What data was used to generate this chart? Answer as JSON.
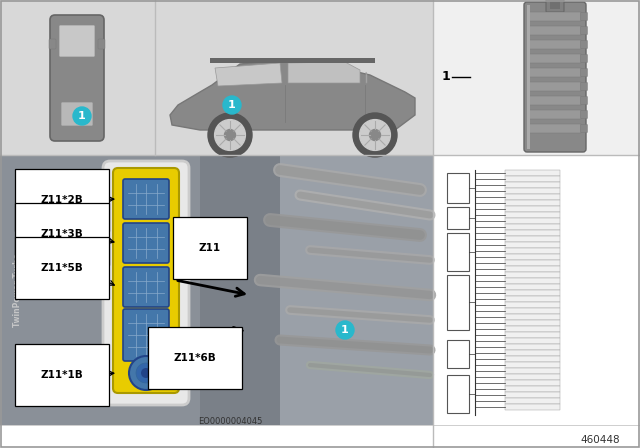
{
  "bg_color": "#ffffff",
  "panel_top_bg": "#d8d8d8",
  "panel_bottom_bg": "#8a9098",
  "panel_right_top_bg": "#f0f0f0",
  "panel_right_bottom_bg": "#ffffff",
  "teal_color": "#29b8cc",
  "yellow_color": "#d4b800",
  "yellow_fill": "#e8cc00",
  "connector_blue": "#5588bb",
  "connector_dark": "#3366aa",
  "part_gray": "#888888",
  "part_light": "#aaaaaa",
  "part_dark": "#666666",
  "car_body": "#888888",
  "car_window": "#cccccc",
  "car_body_light": "#999999",
  "wheel_dark": "#555555",
  "wheel_light": "#aaaaaa",
  "schematic_line": "#333333",
  "schematic_bg": "#ffffff",
  "label_bg": "#ffffff",
  "label_border": "#000000",
  "arrow_color": "#000000",
  "border_color": "#999999",
  "diagram_number": "460448",
  "eo_number": "EO0000004045",
  "labels": {
    "Z11": "Z11",
    "Z11_2B": "Z11*2B",
    "Z11_3B": "Z11*3B",
    "Z11_5B": "Z11*5B",
    "Z11_6B": "Z11*6B",
    "Z11_1B": "Z11*1B"
  },
  "sep_color": "#bbbbbb",
  "module_white_border": "#eeeeee",
  "engine_photo_bg": "#9aa0a8"
}
